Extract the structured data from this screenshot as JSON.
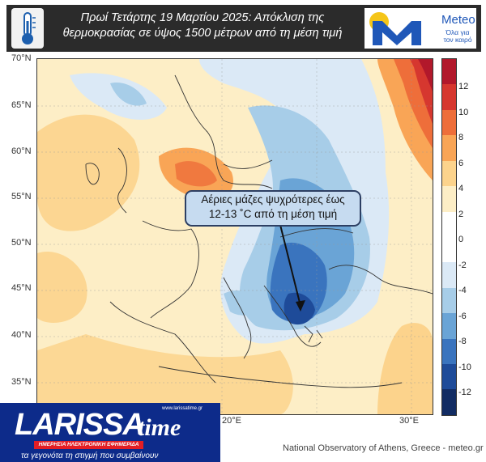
{
  "header": {
    "title_line1": "Πρωί Τετάρτης 19 Μαρτίου 2025: Απόκλιση της",
    "title_line2": "θερμοκρασίας σε ύψος 1500 μέτρων από τη μέση τιμή",
    "icon": "thermometer-icon",
    "logo": {
      "name": "Meteo",
      "slogan": "Όλα για τον καιρό",
      "mark": "M"
    }
  },
  "map": {
    "lat_labels": [
      "70°N",
      "65°N",
      "60°N",
      "55°N",
      "50°N",
      "45°N",
      "40°N",
      "35°N"
    ],
    "lon_labels": [
      "20°E",
      "30°E"
    ],
    "credit": "National Observatory of Athens, Greece - meteo.gr",
    "annotation": {
      "line1": "Αέριες μάζες ψυχρότερες έως",
      "line2": "12-13 ˚C από τη μέση τιμή"
    }
  },
  "colorbar": {
    "labels": [
      "12",
      "10",
      "8",
      "6",
      "4",
      "2",
      "0",
      "-2",
      "-4",
      "-6",
      "-8",
      "-10",
      "-12"
    ],
    "colors": [
      "#b2182b",
      "#d6372f",
      "#ee6e3a",
      "#f9a556",
      "#fcd38c",
      "#fdeec6",
      "#ffffff",
      "#ffffff",
      "#dbe9f6",
      "#a7cde8",
      "#6aa4d6",
      "#3a74be",
      "#1e4b99",
      "#122c63"
    ]
  },
  "watermark": {
    "brand_left": "LARISSA",
    "brand_right": "time",
    "url": "www.larissatime.gr",
    "subtitle": "ΗΜΕΡΗΣΙΑ ΗΛΕΚΤΡΟΝΙΚΗ ΕΦΗΜΕΡΙΔΑ",
    "tagline": "τα γεγονότα τη στιγμή που συμβαίνουν"
  }
}
